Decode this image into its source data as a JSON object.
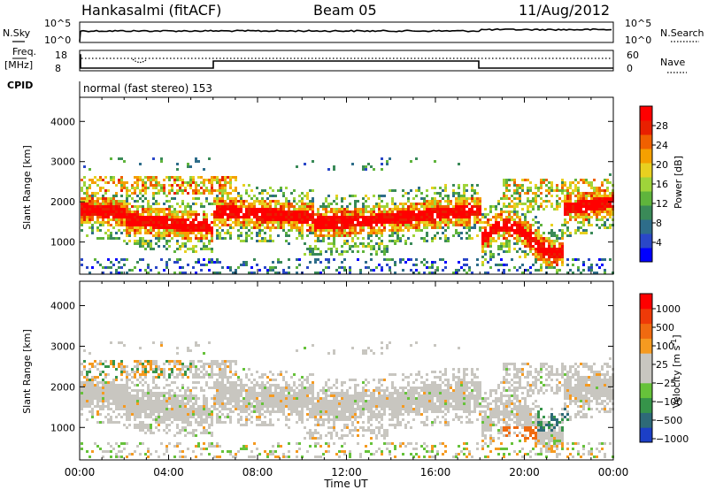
{
  "header": {
    "station": "Hankasalmi (fitACF)",
    "beam": "Beam 05",
    "date": "11/Aug/2012"
  },
  "noise_panel": {
    "left_label": "N.Sky",
    "right_label": "N.Search",
    "left_ticks": [
      "10^5",
      "10^0"
    ],
    "right_ticks": [
      "10^5",
      "10^0"
    ]
  },
  "freq_panel": {
    "left_label": "Freq.",
    "left_unit": "[MHz]",
    "left_ticks": [
      "18",
      "8"
    ],
    "right_label": "Nave",
    "right_ticks": [
      "60",
      "0"
    ]
  },
  "cpid": {
    "label": "CPID",
    "value": "normal (fast stereo) 153"
  },
  "chart_data": [
    {
      "type": "heatmap",
      "panel": "power",
      "ylabel": "Slant Range [km]",
      "xlabel": "",
      "x_range": [
        0,
        24
      ],
      "ylim": [
        200,
        4600
      ],
      "y_ticks": [
        "1000",
        "2000",
        "3000",
        "4000"
      ],
      "colorbar": {
        "label": "Power [dB]",
        "ticks": [
          "4",
          "8",
          "12",
          "16",
          "20",
          "24",
          "28"
        ],
        "colors": [
          "#0000ff",
          "#2a47c8",
          "#2e6d8a",
          "#3a8a58",
          "#5fb43c",
          "#9fd43a",
          "#e8d020",
          "#f5a000",
          "#f06000",
          "#e82000",
          "#ff0000"
        ]
      },
      "scatter_bands": [
        {
          "hours": [
            0,
            6
          ],
          "range_km": [
            1400,
            2000
          ]
        },
        {
          "hours": [
            6,
            10.5
          ],
          "range_km": [
            1500,
            1900
          ]
        },
        {
          "hours": [
            10.5,
            13.5
          ],
          "range_km": [
            1350,
            1750
          ]
        },
        {
          "hours": [
            13.5,
            18
          ],
          "range_km": [
            1450,
            2000
          ]
        },
        {
          "hours": [
            18,
            21.7
          ],
          "range_km": [
            800,
            2000
          ]
        },
        {
          "hours": [
            21.7,
            24
          ],
          "range_km": [
            1700,
            2200
          ]
        }
      ]
    },
    {
      "type": "heatmap",
      "panel": "velocity",
      "ylabel": "Slant Range [km]",
      "xlabel": "Time UT",
      "x_range": [
        0,
        24
      ],
      "x_ticks": [
        "00:00",
        "04:00",
        "08:00",
        "12:00",
        "16:00",
        "20:00",
        "00:00"
      ],
      "ylim": [
        200,
        4600
      ],
      "y_ticks": [
        "1000",
        "2000",
        "3000",
        "4000"
      ],
      "colorbar": {
        "label": "Velocity [m s",
        "label_exp": "-1",
        "label_close": "]",
        "ticks": [
          "1000",
          "500",
          "100",
          "25",
          "−25",
          "−100",
          "−500",
          "−1000"
        ],
        "colors": [
          "#1c3fc6",
          "#2e6a78",
          "#36944a",
          "#66c23a",
          "#c8c6c0",
          "#c8c6c0",
          "#f59a20",
          "#f06a10",
          "#ee3a08",
          "#ff0000"
        ]
      }
    }
  ]
}
